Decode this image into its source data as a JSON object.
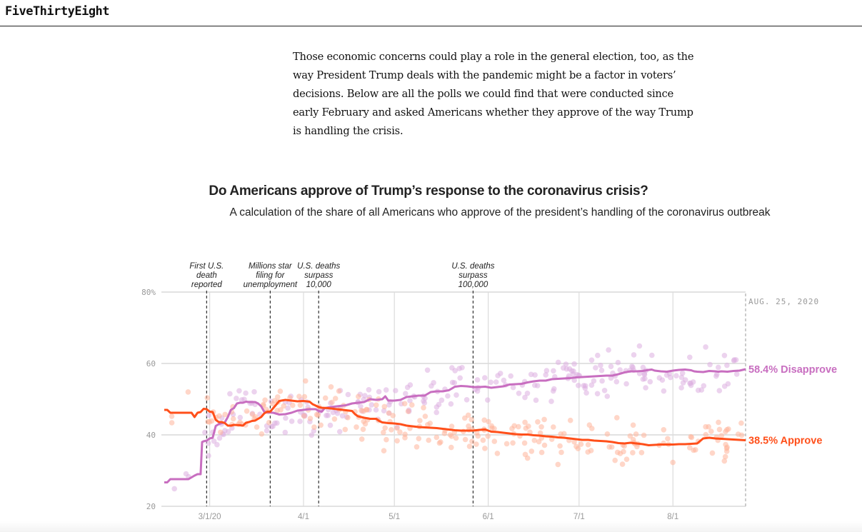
{
  "site": {
    "logo": "FiveThirtyEight"
  },
  "article": {
    "paragraph": "Those economic concerns could play a role in the general election, too, as the way President Trump deals with the pandemic might be a factor in voters’ decisions. Below are all the polls we could find that were conducted since early February and asked Americans whether they approve of the way Trump is handling the crisis."
  },
  "chart_data": {
    "type": "line",
    "title": "Do Americans approve of Trump’s response to the coronavirus crisis?",
    "subtitle": "A calculation of the share of all Americans who approve of the president’s handling of the coronavirus outbreak",
    "xlabel": "",
    "ylabel": "",
    "x_unit": "days since Feb. 15, 2020",
    "xlim": [
      0,
      192
    ],
    "ylim": [
      20,
      80
    ],
    "grid": true,
    "y_ticks": [
      {
        "value": 80,
        "label": "80%"
      },
      {
        "value": 60,
        "label": "60"
      },
      {
        "value": 40,
        "label": "40"
      },
      {
        "value": 20,
        "label": "20"
      }
    ],
    "x_ticks": [
      {
        "value": 15,
        "label": "3/1/20"
      },
      {
        "value": 46,
        "label": "4/1"
      },
      {
        "value": 76,
        "label": "5/1"
      },
      {
        "value": 107,
        "label": "6/1"
      },
      {
        "value": 137,
        "label": "7/1"
      },
      {
        "value": 168,
        "label": "8/1"
      }
    ],
    "end_date_label": "AUG. 25, 2020",
    "annotations": [
      {
        "x": 14,
        "lines": [
          "First U.S.",
          "death",
          "reported"
        ]
      },
      {
        "x": 35,
        "lines": [
          "Millions star",
          "filing for",
          "unemployment"
        ]
      },
      {
        "x": 51,
        "lines": [
          "U.S. deaths",
          "surpass",
          "10,000"
        ]
      },
      {
        "x": 102,
        "lines": [
          "U.S. deaths",
          "surpass",
          "100,000"
        ]
      }
    ],
    "series": [
      {
        "name": "Disapprove",
        "end_label": "58.4% Disapprove",
        "final_value": 58.4,
        "color": "#c86ec0",
        "dot_color": "#dcaee0",
        "points": [
          [
            0,
            26.7
          ],
          [
            1,
            26.7
          ],
          [
            2,
            27.6
          ],
          [
            8,
            27.6
          ],
          [
            10,
            28.6
          ],
          [
            11,
            29.0
          ],
          [
            12,
            29.0
          ],
          [
            12.5,
            38.0
          ],
          [
            13,
            38.2
          ],
          [
            14,
            38.4
          ],
          [
            15,
            39.0
          ],
          [
            16,
            39.2
          ],
          [
            17,
            42.5
          ],
          [
            18,
            43.0
          ],
          [
            19,
            43.3
          ],
          [
            20,
            43.5
          ],
          [
            21,
            45.0
          ],
          [
            22,
            47.0
          ],
          [
            23,
            47.5
          ],
          [
            24,
            48.8
          ],
          [
            25,
            49.0
          ],
          [
            26,
            49.0
          ],
          [
            27,
            49.3
          ],
          [
            28,
            49.2
          ],
          [
            30,
            49.2
          ],
          [
            31,
            48.8
          ],
          [
            32,
            48.0
          ],
          [
            33,
            46.5
          ],
          [
            34,
            46.3
          ],
          [
            36,
            46.2
          ],
          [
            38,
            45.7
          ],
          [
            40,
            45.8
          ],
          [
            42,
            46.2
          ],
          [
            44,
            46.8
          ],
          [
            46,
            47.0
          ],
          [
            48,
            47.2
          ],
          [
            50,
            47.2
          ],
          [
            51,
            46.7
          ],
          [
            52,
            46.5
          ],
          [
            53,
            47.5
          ],
          [
            55,
            47.8
          ],
          [
            57,
            48.0
          ],
          [
            60,
            48.3
          ],
          [
            62,
            48.8
          ],
          [
            64,
            49.0
          ],
          [
            66,
            49.2
          ],
          [
            68,
            50.0
          ],
          [
            70,
            49.8
          ],
          [
            72,
            50.0
          ],
          [
            73,
            50.8
          ],
          [
            74,
            49.6
          ],
          [
            76,
            49.6
          ],
          [
            78,
            49.8
          ],
          [
            80,
            50.6
          ],
          [
            82,
            50.8
          ],
          [
            84,
            51.0
          ],
          [
            86,
            51.0
          ],
          [
            88,
            52.0
          ],
          [
            90,
            52.2
          ],
          [
            92,
            52.2
          ],
          [
            94,
            52.5
          ],
          [
            96,
            53.5
          ],
          [
            98,
            53.7
          ],
          [
            100,
            53.6
          ],
          [
            102,
            53.4
          ],
          [
            104,
            53.4
          ],
          [
            106,
            53.5
          ],
          [
            108,
            53.2
          ],
          [
            110,
            53.4
          ],
          [
            112,
            53.6
          ],
          [
            114,
            54.1
          ],
          [
            116,
            54.2
          ],
          [
            118,
            54.3
          ],
          [
            120,
            54.7
          ],
          [
            122,
            55.0
          ],
          [
            124,
            55.2
          ],
          [
            126,
            55.2
          ],
          [
            128,
            55.6
          ],
          [
            130,
            55.7
          ],
          [
            132,
            55.8
          ],
          [
            134,
            55.9
          ],
          [
            136,
            56.1
          ],
          [
            138,
            56.2
          ],
          [
            140,
            56.3
          ],
          [
            142,
            56.4
          ],
          [
            144,
            56.5
          ],
          [
            146,
            56.6
          ],
          [
            148,
            56.6
          ],
          [
            150,
            57.0
          ],
          [
            152,
            57.5
          ],
          [
            154,
            57.8
          ],
          [
            156,
            57.8
          ],
          [
            158,
            57.9
          ],
          [
            160,
            58.2
          ],
          [
            161,
            58.3
          ],
          [
            162,
            58.0
          ],
          [
            164,
            57.8
          ],
          [
            166,
            57.7
          ],
          [
            168,
            58.0
          ],
          [
            170,
            58.2
          ],
          [
            172,
            58.3
          ],
          [
            174,
            58.1
          ],
          [
            175,
            57.8
          ],
          [
            176,
            57.7
          ],
          [
            178,
            57.6
          ],
          [
            180,
            57.9
          ],
          [
            182,
            57.8
          ],
          [
            183,
            57.7
          ],
          [
            184,
            57.8
          ],
          [
            186,
            57.7
          ],
          [
            188,
            57.9
          ],
          [
            190,
            58.0
          ],
          [
            192,
            58.4
          ]
        ]
      },
      {
        "name": "Approve",
        "end_label": "38.5% Approve",
        "final_value": 38.5,
        "color": "#ff4f1a",
        "dot_color": "#ffb59a",
        "points": [
          [
            0,
            47.0
          ],
          [
            1,
            47.0
          ],
          [
            2,
            46.2
          ],
          [
            8,
            46.2
          ],
          [
            9,
            46.2
          ],
          [
            10,
            45.0
          ],
          [
            11,
            46.2
          ],
          [
            12,
            46.4
          ],
          [
            13,
            47.3
          ],
          [
            14,
            47.2
          ],
          [
            15,
            46.5
          ],
          [
            16,
            46.4
          ],
          [
            17,
            44.2
          ],
          [
            18,
            43.6
          ],
          [
            19,
            43.6
          ],
          [
            20,
            43.3
          ],
          [
            21,
            42.6
          ],
          [
            22,
            42.6
          ],
          [
            23,
            42.8
          ],
          [
            25,
            42.7
          ],
          [
            26,
            42.6
          ],
          [
            27,
            43.4
          ],
          [
            28,
            43.6
          ],
          [
            29,
            43.9
          ],
          [
            30,
            44.0
          ],
          [
            31,
            44.5
          ],
          [
            32,
            45.0
          ],
          [
            33,
            46.0
          ],
          [
            34,
            46.5
          ],
          [
            35,
            46.5
          ],
          [
            36,
            47.5
          ],
          [
            37,
            48.5
          ],
          [
            38,
            49.5
          ],
          [
            40,
            49.8
          ],
          [
            42,
            49.6
          ],
          [
            44,
            49.4
          ],
          [
            46,
            49.5
          ],
          [
            48,
            49.3
          ],
          [
            49,
            48.6
          ],
          [
            50,
            48.2
          ],
          [
            51,
            47.8
          ],
          [
            52,
            47.6
          ],
          [
            54,
            47.5
          ],
          [
            56,
            47.3
          ],
          [
            58,
            47.1
          ],
          [
            60,
            46.9
          ],
          [
            62,
            46.7
          ],
          [
            63,
            45.8
          ],
          [
            64,
            45.2
          ],
          [
            66,
            44.8
          ],
          [
            68,
            44.5
          ],
          [
            70,
            44.5
          ],
          [
            71,
            43.9
          ],
          [
            72,
            43.5
          ],
          [
            74,
            43.3
          ],
          [
            76,
            43.2
          ],
          [
            78,
            43.0
          ],
          [
            80,
            42.6
          ],
          [
            82,
            42.4
          ],
          [
            84,
            42.2
          ],
          [
            86,
            42.1
          ],
          [
            88,
            42.0
          ],
          [
            90,
            41.9
          ],
          [
            92,
            41.7
          ],
          [
            94,
            41.5
          ],
          [
            96,
            41.3
          ],
          [
            98,
            41.2
          ],
          [
            100,
            41.2
          ],
          [
            102,
            41.2
          ],
          [
            104,
            41.4
          ],
          [
            106,
            41.5
          ],
          [
            108,
            40.9
          ],
          [
            110,
            40.8
          ],
          [
            112,
            40.6
          ],
          [
            114,
            40.4
          ],
          [
            116,
            40.2
          ],
          [
            118,
            40.1
          ],
          [
            120,
            40.1
          ],
          [
            122,
            39.9
          ],
          [
            124,
            39.8
          ],
          [
            126,
            39.6
          ],
          [
            128,
            39.5
          ],
          [
            130,
            39.3
          ],
          [
            132,
            39.2
          ],
          [
            134,
            39.0
          ],
          [
            136,
            38.8
          ],
          [
            138,
            38.6
          ],
          [
            140,
            38.6
          ],
          [
            142,
            38.4
          ],
          [
            144,
            38.3
          ],
          [
            146,
            38.2
          ],
          [
            148,
            38.0
          ],
          [
            150,
            37.7
          ],
          [
            152,
            37.6
          ],
          [
            154,
            37.8
          ],
          [
            156,
            37.6
          ],
          [
            158,
            37.4
          ],
          [
            160,
            37.1
          ],
          [
            162,
            37.2
          ],
          [
            164,
            37.3
          ],
          [
            166,
            37.3
          ],
          [
            168,
            37.3
          ],
          [
            170,
            37.4
          ],
          [
            172,
            37.4
          ],
          [
            174,
            37.5
          ],
          [
            176,
            37.6
          ],
          [
            178,
            39.0
          ],
          [
            180,
            39.2
          ],
          [
            182,
            39.0
          ],
          [
            184,
            38.9
          ],
          [
            186,
            38.8
          ],
          [
            188,
            38.7
          ],
          [
            190,
            38.6
          ],
          [
            192,
            38.5
          ]
        ]
      }
    ]
  }
}
